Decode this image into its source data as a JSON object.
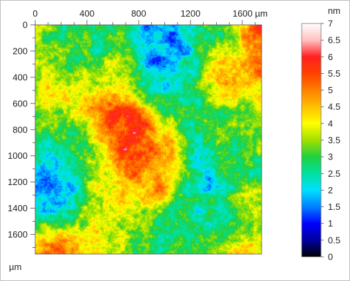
{
  "chart_data": {
    "type": "heatmap",
    "title": "",
    "x_unit": "µm",
    "y_unit": "µm",
    "xlim": [
      0,
      1750
    ],
    "ylim": [
      0,
      1750
    ],
    "y_direction": "downward",
    "x_ticks": [
      0,
      400,
      800,
      1200,
      1600
    ],
    "x_tick_labels": [
      "0",
      "400",
      "800",
      "1200",
      "1600 µm"
    ],
    "y_ticks": [
      0,
      200,
      400,
      600,
      800,
      1000,
      1200,
      1400,
      1600
    ],
    "y_tick_labels": [
      "0",
      "200",
      "400",
      "600",
      "800",
      "1000",
      "1200",
      "1400",
      "1600"
    ],
    "colorbar": {
      "unit": "nm",
      "range": [
        0,
        7
      ],
      "ticks": [
        0,
        0.5,
        1,
        1.5,
        2,
        2.5,
        3,
        3.5,
        4,
        4.5,
        5,
        5.5,
        6,
        6.5,
        7
      ],
      "tick_labels": [
        "0",
        "0.5",
        "1",
        "1.5",
        "2",
        "2.5",
        "3",
        "3.5",
        "4",
        "4.5",
        "5",
        "5.5",
        "6",
        "6.5",
        "7"
      ],
      "colormap": [
        {
          "value": 0,
          "color": "#000000"
        },
        {
          "value": 0.5,
          "color": "#0000a0"
        },
        {
          "value": 1,
          "color": "#0000ff"
        },
        {
          "value": 1.5,
          "color": "#0080ff"
        },
        {
          "value": 2,
          "color": "#00e0ff"
        },
        {
          "value": 2.5,
          "color": "#00e0a0"
        },
        {
          "value": 3,
          "color": "#20d040"
        },
        {
          "value": 3.5,
          "color": "#a0e000"
        },
        {
          "value": 4,
          "color": "#ffff00"
        },
        {
          "value": 4.5,
          "color": "#ffc000"
        },
        {
          "value": 5,
          "color": "#ff8000"
        },
        {
          "value": 5.5,
          "color": "#ff4000"
        },
        {
          "value": 6,
          "color": "#ff2020"
        },
        {
          "value": 6.5,
          "color": "#ffc0c0"
        },
        {
          "value": 7,
          "color": "#ffffff"
        }
      ]
    },
    "base_height_nm": 3.5,
    "features": [
      {
        "x": 1000,
        "y": 150,
        "radius": 170,
        "height_nm": 1.3
      },
      {
        "x": 950,
        "y": 450,
        "radius": 180,
        "height_nm": 1.8
      },
      {
        "x": 520,
        "y": 130,
        "radius": 130,
        "height_nm": 2.4
      },
      {
        "x": 400,
        "y": 280,
        "radius": 160,
        "height_nm": 2.6
      },
      {
        "x": 1550,
        "y": 170,
        "radius": 150,
        "height_nm": 2.6
      },
      {
        "x": 110,
        "y": 1080,
        "radius": 200,
        "height_nm": 1.2
      },
      {
        "x": 90,
        "y": 1380,
        "radius": 130,
        "height_nm": 1.5
      },
      {
        "x": 1350,
        "y": 1150,
        "radius": 200,
        "height_nm": 1.2
      },
      {
        "x": 1550,
        "y": 1020,
        "radius": 140,
        "height_nm": 2.6
      },
      {
        "x": 1300,
        "y": 800,
        "radius": 170,
        "height_nm": 2.6
      },
      {
        "x": 1050,
        "y": 1500,
        "radius": 230,
        "height_nm": 2.7
      },
      {
        "x": 1200,
        "y": 1600,
        "radius": 170,
        "height_nm": 2.9
      },
      {
        "x": 700,
        "y": 1650,
        "radius": 200,
        "height_nm": 3.0
      },
      {
        "x": 1500,
        "y": 1500,
        "radius": 180,
        "height_nm": 2.6
      },
      {
        "x": 1650,
        "y": 650,
        "radius": 140,
        "height_nm": 2.7
      },
      {
        "x": 250,
        "y": 620,
        "radius": 190,
        "height_nm": 4.4
      },
      {
        "x": 600,
        "y": 300,
        "radius": 130,
        "height_nm": 4.3
      },
      {
        "x": 1500,
        "y": 950,
        "radius": 160,
        "height_nm": 4.2
      },
      {
        "x": 650,
        "y": 1400,
        "radius": 160,
        "height_nm": 4.4
      },
      {
        "x": 1650,
        "y": 1350,
        "radius": 120,
        "height_nm": 4.3
      },
      {
        "x": 600,
        "y": 1230,
        "radius": 140,
        "height_nm": 4.6
      },
      {
        "x": 700,
        "y": 700,
        "radius": 160,
        "height_nm": 6.0
      },
      {
        "x": 780,
        "y": 850,
        "radius": 160,
        "height_nm": 5.8
      },
      {
        "x": 880,
        "y": 1000,
        "radius": 150,
        "height_nm": 5.6
      },
      {
        "x": 950,
        "y": 1150,
        "radius": 140,
        "height_nm": 5.5
      },
      {
        "x": 700,
        "y": 760,
        "radius": 80,
        "height_nm": 6.5
      },
      {
        "x": 950,
        "y": 1250,
        "radius": 70,
        "height_nm": 6.1
      },
      {
        "x": 1600,
        "y": 400,
        "radius": 180,
        "height_nm": 5.6
      },
      {
        "x": 1700,
        "y": 150,
        "radius": 110,
        "height_nm": 6.1
      },
      {
        "x": 1730,
        "y": 80,
        "radius": 60,
        "height_nm": 6.6
      },
      {
        "x": 120,
        "y": 1720,
        "radius": 150,
        "height_nm": 5.2
      },
      {
        "x": 500,
        "y": 1740,
        "radius": 120,
        "height_nm": 4.8
      },
      {
        "x": 1600,
        "y": 1720,
        "radius": 140,
        "height_nm": 5.0
      },
      {
        "x": 200,
        "y": 900,
        "radius": 200,
        "height_nm": 3.0
      },
      {
        "x": 1100,
        "y": 620,
        "radius": 150,
        "height_nm": 3.0
      }
    ]
  }
}
